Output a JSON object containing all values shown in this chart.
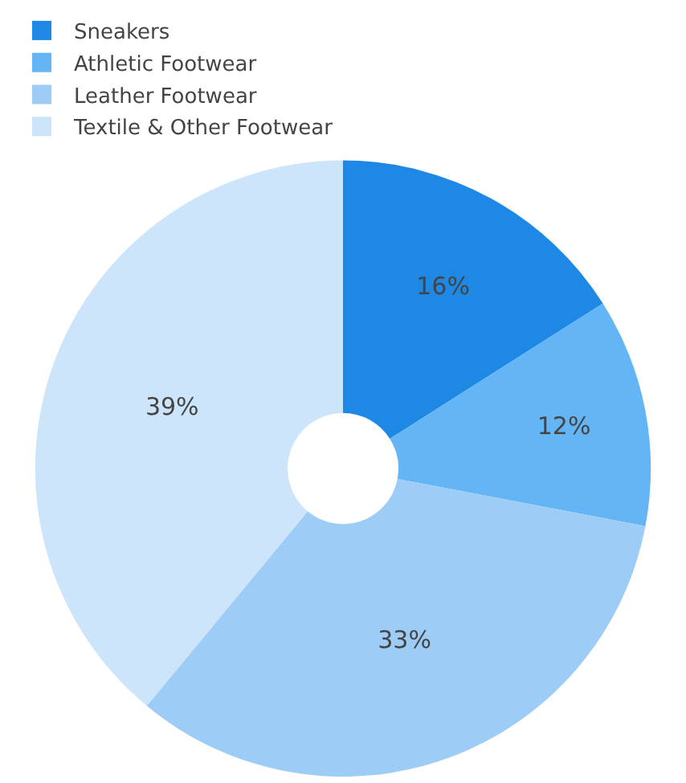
{
  "chart_data": {
    "type": "donut",
    "categories": [
      "Sneakers",
      "Athletic Footwear",
      "Leather Footwear",
      "Textile & Other Footwear"
    ],
    "values": [
      16,
      12,
      33,
      39
    ],
    "value_labels": [
      "16%",
      "12%",
      "33%",
      "39%"
    ],
    "colors": [
      "#1e88e5",
      "#64b5f6",
      "#9dcdf7",
      "#cce5fb"
    ],
    "legend": "top"
  }
}
